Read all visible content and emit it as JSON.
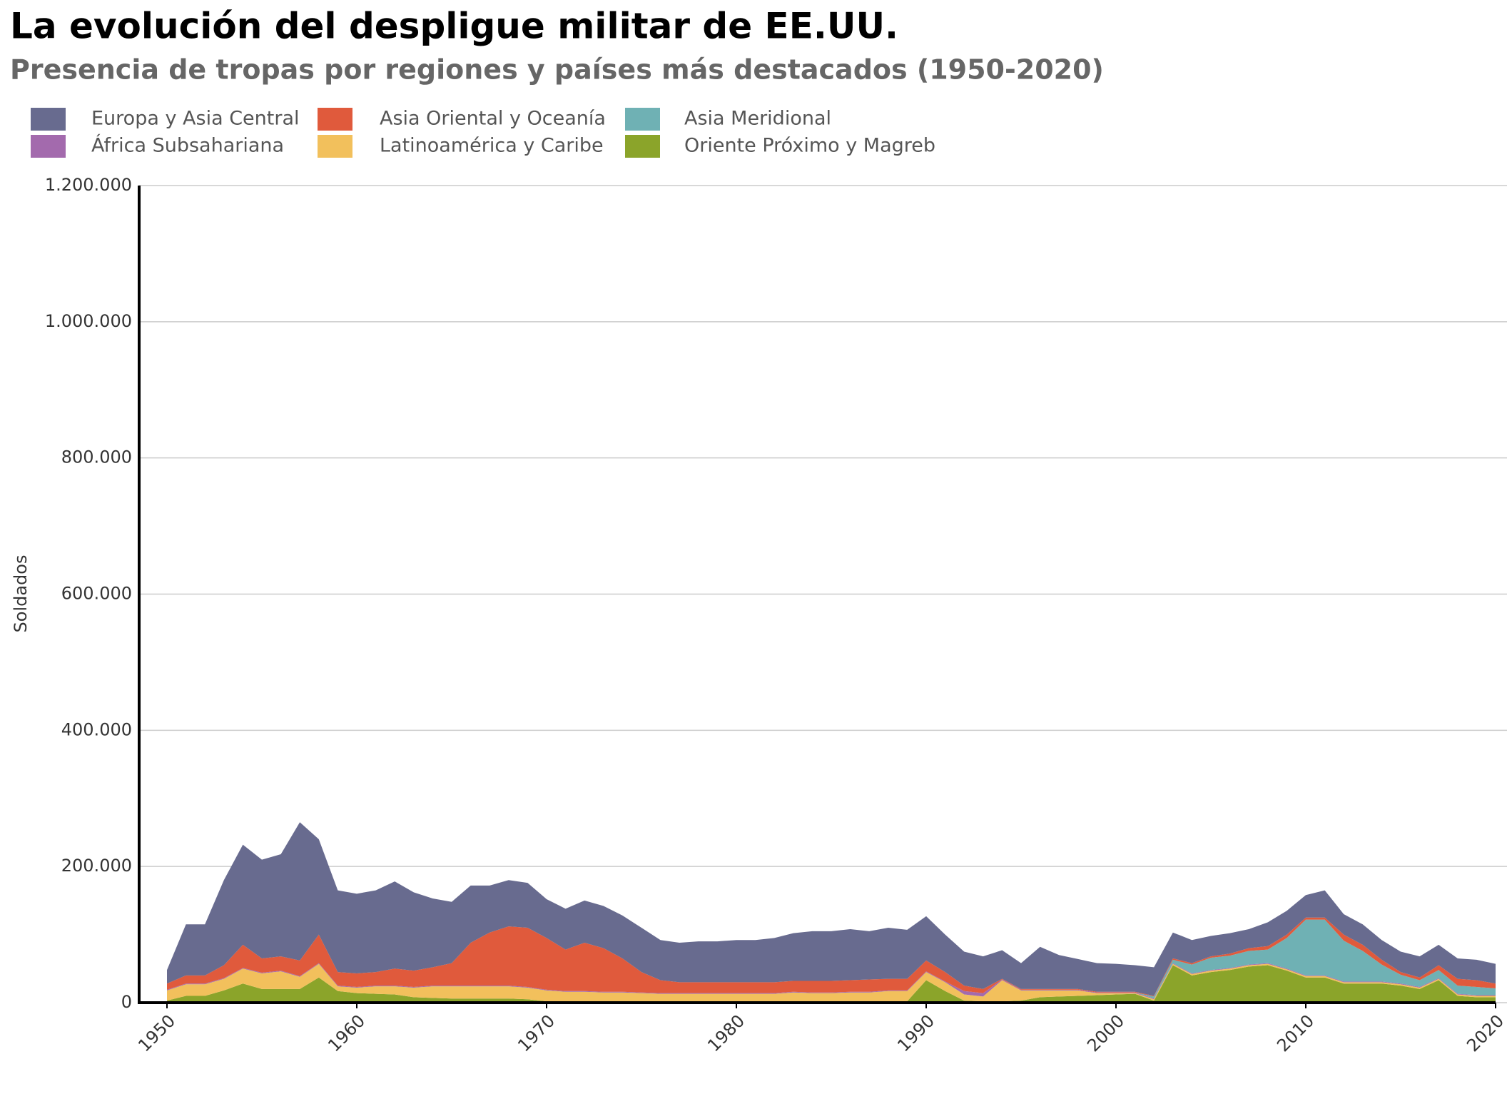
{
  "chart_data": {
    "type": "stacked_area",
    "title": "La evolución del despligue militar de EE.UU.",
    "subtitle": "Presencia de tropas por regiones y países más destacados (1950-2020)",
    "ylabel": "Soldados",
    "x": [
      1950,
      1951,
      1952,
      1953,
      1954,
      1955,
      1956,
      1957,
      1958,
      1959,
      1960,
      1961,
      1962,
      1963,
      1964,
      1965,
      1966,
      1967,
      1968,
      1969,
      1970,
      1971,
      1972,
      1973,
      1974,
      1975,
      1976,
      1977,
      1978,
      1979,
      1980,
      1981,
      1982,
      1983,
      1984,
      1985,
      1986,
      1987,
      1988,
      1989,
      1990,
      1991,
      1992,
      1993,
      1994,
      1995,
      1996,
      1997,
      1998,
      1999,
      2000,
      2001,
      2002,
      2003,
      2004,
      2005,
      2006,
      2007,
      2008,
      2009,
      2010,
      2011,
      2012,
      2013,
      2014,
      2015,
      2016,
      2017,
      2018,
      2019,
      2020
    ],
    "xlim": [
      1950,
      2020
    ],
    "xticks": [
      1950,
      1960,
      1970,
      1980,
      1990,
      2000,
      2010,
      2020
    ],
    "ylim": [
      0,
      1200000
    ],
    "yticks": [
      0,
      {
        "value": 200000,
        "label": "200.000"
      },
      {
        "value": 400000,
        "label": "400.000"
      },
      {
        "value": 600000,
        "label": "600.000"
      },
      {
        "value": 800000,
        "label": "800.000"
      },
      {
        "value": 1000000,
        "label": "1.000.000"
      },
      {
        "value": 1200000,
        "label": "1.200.000"
      }
    ],
    "grid": true,
    "series": [
      {
        "name": "Europa y Asia Central",
        "color": "#686b8f",
        "values": [
          20000,
          75000,
          75000,
          125000,
          147000,
          145000,
          150000,
          203000,
          140000,
          120000,
          117000,
          120000,
          128000,
          115000,
          101000,
          90000,
          84000,
          69000,
          68000,
          66000,
          57000,
          60000,
          62000,
          62000,
          63000,
          65000,
          59000,
          58000,
          60000,
          60000,
          62000,
          62000,
          65000,
          70000,
          73000,
          73000,
          75000,
          71000,
          75000,
          72000,
          65000,
          55000,
          50000,
          48000,
          42000,
          38000,
          62000,
          50000,
          44000,
          42000,
          41000,
          39000,
          42000,
          38000,
          34000,
          30000,
          30000,
          28000,
          35000,
          35000,
          33000,
          40000,
          30000,
          30000,
          29000,
          30000,
          31000,
          30000,
          30000,
          30000,
          29000
        ]
      },
      {
        "name": "Asia Oriental y Oceanía",
        "color": "#e05a3c",
        "values": [
          9000,
          12000,
          12000,
          19000,
          34000,
          21000,
          21000,
          23000,
          42000,
          20000,
          20000,
          20000,
          25000,
          24000,
          27000,
          33000,
          63000,
          78000,
          87000,
          87000,
          76000,
          61000,
          71000,
          64000,
          49000,
          30000,
          19000,
          16000,
          16000,
          16000,
          16000,
          16000,
          16000,
          16000,
          17000,
          17000,
          17000,
          18000,
          17000,
          17000,
          16000,
          14000,
          8000,
          6000,
          1000,
          1000,
          1000,
          1000,
          1000,
          1000,
          1000,
          1000,
          1000,
          2000,
          2000,
          2000,
          3000,
          4000,
          5000,
          5000,
          3000,
          3000,
          9000,
          9000,
          7000,
          4000,
          4000,
          7000,
          10000,
          10000,
          7000
        ]
      },
      {
        "name": "Asia Meridional",
        "color": "#6fb1b4",
        "values": [
          0,
          0,
          0,
          0,
          0,
          0,
          0,
          0,
          0,
          0,
          0,
          0,
          0,
          0,
          0,
          0,
          0,
          0,
          0,
          0,
          0,
          0,
          0,
          0,
          0,
          0,
          0,
          0,
          0,
          0,
          0,
          0,
          0,
          0,
          0,
          0,
          0,
          0,
          0,
          0,
          0,
          0,
          0,
          0,
          0,
          0,
          0,
          0,
          0,
          0,
          0,
          0,
          3000,
          5000,
          13000,
          18000,
          18000,
          20000,
          20000,
          45000,
          82000,
          82000,
          60000,
          45000,
          25000,
          13000,
          10000,
          12000,
          12000,
          12000,
          10000
        ]
      },
      {
        "name": "África Subsahariana",
        "color": "#a36aad",
        "values": [
          1000,
          1000,
          1000,
          1000,
          1000,
          1000,
          1000,
          1000,
          1000,
          1000,
          1000,
          1000,
          1000,
          1000,
          1000,
          1000,
          1000,
          1000,
          1000,
          1000,
          1000,
          1000,
          1000,
          1000,
          1000,
          1000,
          1000,
          1000,
          1000,
          1000,
          1000,
          1000,
          1000,
          1000,
          1000,
          1000,
          1000,
          1000,
          1000,
          1000,
          1000,
          1000,
          5000,
          5000,
          1000,
          1000,
          1000,
          1000,
          1000,
          1000,
          1000,
          1000,
          1000,
          1000,
          1000,
          1000,
          1000,
          1000,
          1000,
          1000,
          1000,
          1000,
          1000,
          1000,
          1000,
          1000,
          1000,
          1000,
          1000,
          1000,
          1000
        ]
      },
      {
        "name": "Latinoamérica y Caribe",
        "color": "#f2c05c",
        "values": [
          15000,
          17000,
          17000,
          17000,
          22000,
          23000,
          26000,
          18000,
          20000,
          7000,
          8000,
          11000,
          12000,
          14000,
          17000,
          18000,
          18000,
          18000,
          18000,
          17000,
          16000,
          14000,
          14000,
          13000,
          13000,
          12000,
          11000,
          11000,
          11000,
          11000,
          11000,
          11000,
          11000,
          13000,
          12000,
          12000,
          13000,
          13000,
          15000,
          15000,
          12000,
          13000,
          9000,
          7000,
          31000,
          15000,
          10000,
          9000,
          8000,
          3000,
          2000,
          1000,
          2000,
          2000,
          2000,
          2000,
          2000,
          2000,
          2000,
          2000,
          2000,
          2000,
          2000,
          2000,
          2000,
          2000,
          2000,
          2000,
          2000,
          2000,
          2000
        ]
      },
      {
        "name": "Oriente Próximo y Magreb",
        "color": "#8ba42a",
        "values": [
          3000,
          10000,
          10000,
          18000,
          28000,
          20000,
          20000,
          20000,
          37000,
          17000,
          14000,
          13000,
          12000,
          8000,
          7000,
          6000,
          6000,
          6000,
          6000,
          5000,
          2000,
          2000,
          2000,
          2000,
          2000,
          2000,
          2000,
          2000,
          2000,
          2000,
          2000,
          2000,
          2000,
          2000,
          2000,
          2000,
          2000,
          2000,
          2000,
          2000,
          33000,
          17000,
          3000,
          2000,
          2000,
          3000,
          8000,
          9000,
          10000,
          11000,
          12000,
          13000,
          3000,
          55000,
          40000,
          45000,
          48000,
          53000,
          55000,
          47000,
          37000,
          37000,
          28000,
          28000,
          28000,
          25000,
          20000,
          33000,
          10000,
          8000,
          8000
        ]
      }
    ]
  }
}
